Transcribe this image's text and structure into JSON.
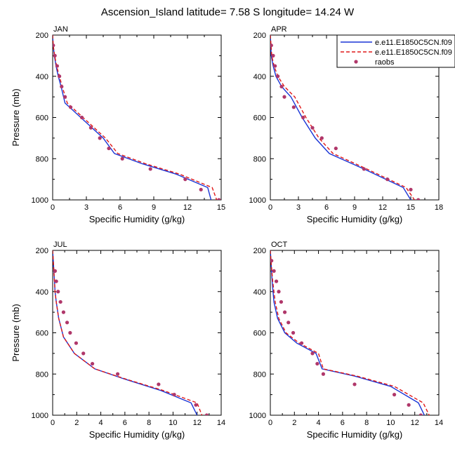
{
  "figure_title": "Ascension_Island  latitude= 7.58 S longitude= 14.24 W",
  "colors": {
    "model_solid": "#1a35d6",
    "model_dashed": "#e01818",
    "raobs": "#b0376a",
    "axis": "#000000"
  },
  "legend": {
    "entries": [
      {
        "label": "e.e11.E1850C5CN.f09",
        "style": "solid",
        "color": "#1a35d6"
      },
      {
        "label": "e.e11.E1850C5CN.f09",
        "style": "dashed",
        "color": "#e01818"
      },
      {
        "label": "raobs",
        "style": "marker",
        "color": "#b0376a"
      }
    ]
  },
  "chart_data": [
    {
      "type": "line",
      "panel": "JAN",
      "title": "JAN",
      "xlabel": "Specific Humidity (g/kg)",
      "ylabel": "Pressure (mb)",
      "xlim": [
        0,
        15
      ],
      "ylim": [
        1000,
        200
      ],
      "xticks": [
        0,
        3,
        6,
        9,
        12,
        15
      ],
      "yticks": [
        200,
        400,
        600,
        800,
        1000
      ],
      "series": [
        {
          "name": "e.e11.E1850C5CN.f09 (solid)",
          "x": [
            0,
            0.05,
            0.15,
            0.3,
            0.5,
            0.75,
            1.1,
            2.5,
            3.5,
            4.5,
            5.5,
            8,
            11,
            13.8,
            14.1
          ],
          "y": [
            200,
            250,
            300,
            350,
            400,
            450,
            530,
            600,
            650,
            700,
            775,
            825,
            875,
            940,
            1000
          ]
        },
        {
          "name": "e.e11.E1850C5CN.f09 (dashed)",
          "x": [
            0,
            0.05,
            0.18,
            0.35,
            0.6,
            0.85,
            1.3,
            2.7,
            3.7,
            4.7,
            5.8,
            8.3,
            11.3,
            14.2,
            14.6
          ],
          "y": [
            200,
            250,
            300,
            350,
            400,
            450,
            530,
            600,
            650,
            700,
            775,
            825,
            875,
            940,
            1000
          ]
        },
        {
          "name": "raobs",
          "x": [
            0.05,
            0.2,
            0.4,
            0.6,
            0.8,
            1.1,
            1.6,
            2.6,
            3.4,
            4.2,
            5.0,
            6.2,
            8.7,
            11.8,
            13.2,
            14.8
          ],
          "y": [
            250,
            300,
            350,
            400,
            450,
            500,
            550,
            600,
            650,
            700,
            750,
            800,
            850,
            900,
            950,
            1000
          ]
        }
      ]
    },
    {
      "type": "line",
      "panel": "APR",
      "title": "APR",
      "xlabel": "Specific Humidity (g/kg)",
      "ylabel": "Pressure (mb)",
      "xlim": [
        0,
        18
      ],
      "ylim": [
        1000,
        200
      ],
      "xticks": [
        0,
        3,
        6,
        9,
        12,
        15,
        18
      ],
      "yticks": [
        200,
        400,
        600,
        800,
        1000
      ],
      "series": [
        {
          "name": "e.e11.E1850C5CN.f09 (solid)",
          "x": [
            0,
            0.1,
            0.3,
            0.6,
            1.2,
            2.2,
            3.4,
            4.8,
            6.3,
            10,
            14.2,
            15
          ],
          "y": [
            200,
            300,
            350,
            400,
            450,
            500,
            600,
            700,
            775,
            850,
            940,
            1000
          ]
        },
        {
          "name": "e.e11.E1850C5CN.f09 (dashed)",
          "x": [
            0,
            0.15,
            0.4,
            0.8,
            1.5,
            2.6,
            3.8,
            5.2,
            6.7,
            10.3,
            14.5,
            15.4
          ],
          "y": [
            200,
            300,
            350,
            400,
            450,
            500,
            600,
            700,
            775,
            850,
            940,
            1000
          ]
        },
        {
          "name": "raobs",
          "x": [
            0.1,
            0.3,
            0.5,
            0.8,
            1.2,
            1.5,
            2.5,
            3.5,
            4.5,
            5.5,
            7.0,
            10.0,
            12.5,
            15.0,
            15.8
          ],
          "y": [
            250,
            300,
            350,
            400,
            450,
            500,
            550,
            600,
            650,
            700,
            750,
            850,
            900,
            950,
            1000
          ]
        }
      ]
    },
    {
      "type": "line",
      "panel": "JUL",
      "title": "JUL",
      "xlabel": "Specific Humidity (g/kg)",
      "ylabel": "Pressure (mb)",
      "xlim": [
        0,
        14
      ],
      "ylim": [
        1000,
        200
      ],
      "xticks": [
        0,
        2,
        4,
        6,
        8,
        10,
        12,
        14
      ],
      "yticks": [
        200,
        400,
        600,
        800,
        1000
      ],
      "series": [
        {
          "name": "e.e11.E1850C5CN.f09 (solid)",
          "x": [
            0,
            0.05,
            0.1,
            0.15,
            0.2,
            0.3,
            0.5,
            0.9,
            1.8,
            3.5,
            6,
            9,
            11.5,
            12
          ],
          "y": [
            200,
            250,
            300,
            350,
            400,
            450,
            530,
            620,
            700,
            775,
            825,
            880,
            940,
            1000
          ]
        },
        {
          "name": "e.e11.E1850C5CN.f09 (dashed)",
          "x": [
            0,
            0.05,
            0.1,
            0.15,
            0.2,
            0.3,
            0.5,
            0.9,
            1.8,
            3.5,
            6.1,
            9.2,
            12,
            12.4
          ],
          "y": [
            200,
            250,
            300,
            350,
            400,
            450,
            530,
            620,
            700,
            775,
            825,
            880,
            940,
            1000
          ]
        },
        {
          "name": "raobs",
          "x": [
            0.2,
            0.3,
            0.45,
            0.65,
            0.9,
            1.2,
            1.45,
            1.95,
            2.55,
            3.3,
            5.4,
            8.8,
            10.1,
            11.9,
            12.8
          ],
          "y": [
            300,
            350,
            400,
            450,
            500,
            550,
            600,
            650,
            700,
            750,
            800,
            850,
            900,
            950,
            1000
          ]
        }
      ]
    },
    {
      "type": "line",
      "panel": "OCT",
      "title": "OCT",
      "xlabel": "Specific Humidity (g/kg)",
      "ylabel": "Pressure (mb)",
      "xlim": [
        0,
        14
      ],
      "ylim": [
        1000,
        200
      ],
      "xticks": [
        0,
        2,
        4,
        6,
        8,
        10,
        12,
        14
      ],
      "yticks": [
        200,
        400,
        600,
        800,
        1000
      ],
      "series": [
        {
          "name": "e.e11.E1850C5CN.f09 (solid)",
          "x": [
            0,
            0.05,
            0.15,
            0.3,
            0.6,
            1.2,
            2.2,
            3.8,
            4.3,
            7,
            10,
            12.3,
            12.8
          ],
          "y": [
            200,
            250,
            350,
            450,
            530,
            600,
            650,
            700,
            775,
            810,
            860,
            940,
            1000
          ]
        },
        {
          "name": "e.e11.E1850C5CN.f09 (dashed)",
          "x": [
            0,
            0.05,
            0.2,
            0.4,
            0.7,
            1.3,
            2.4,
            4.0,
            4.4,
            7.2,
            10.3,
            12.7,
            13.2
          ],
          "y": [
            200,
            250,
            350,
            450,
            530,
            600,
            650,
            700,
            775,
            810,
            860,
            940,
            1000
          ]
        },
        {
          "name": "raobs",
          "x": [
            0.1,
            0.3,
            0.5,
            0.7,
            0.9,
            1.2,
            1.5,
            1.9,
            2.6,
            3.5,
            3.9,
            4.4,
            7.0,
            10.3,
            11.5,
            12.5
          ],
          "y": [
            250,
            300,
            350,
            400,
            450,
            500,
            550,
            600,
            650,
            700,
            750,
            800,
            850,
            900,
            950,
            1000
          ]
        }
      ]
    }
  ]
}
